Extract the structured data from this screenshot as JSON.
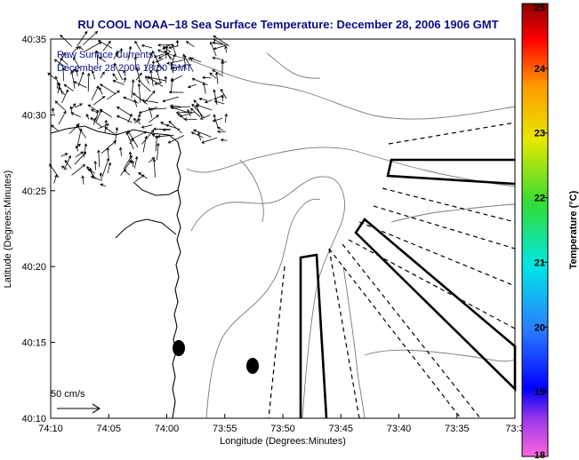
{
  "chart_data": {
    "type": "map",
    "title": "RU COOL  NOAA−18  Sea Surface Temperature:  December 28, 2006 1906 GMT",
    "legend": {
      "line1": "Raw Surface Currents",
      "line2": "December 28 2006 18:00 GMT"
    },
    "xlabel": "Longitude (Degrees:Minutes)",
    "ylabel": "Latitude (Degrees:Minutes)",
    "x_ticks": [
      "74:10",
      "74:05",
      "74:00",
      "73:55",
      "73:50",
      "73:45",
      "73:40",
      "73:35",
      "73:3"
    ],
    "y_ticks": [
      "40:10",
      "40:15",
      "40:20",
      "40:25",
      "40:30",
      "40:35"
    ],
    "xlim_minutes": [
      -70,
      -30
    ],
    "ylim_minutes": [
      10,
      35
    ],
    "scale_label": "50 cm/s",
    "colorbar": {
      "label": "Temperature (°C)",
      "min": 18,
      "max": 25,
      "ticks": [
        "18",
        "19",
        "20",
        "21",
        "22",
        "23",
        "24",
        "25"
      ]
    },
    "grid": false
  }
}
